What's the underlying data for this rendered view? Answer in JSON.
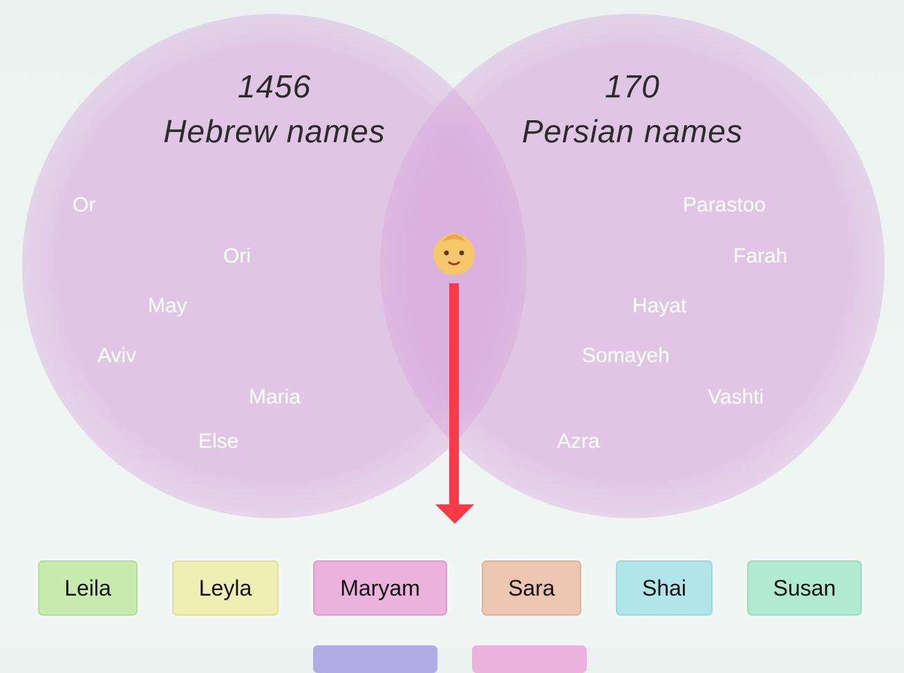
{
  "venn": {
    "left": {
      "count": 1456,
      "label": "Hebrew names",
      "names": [
        "Or",
        "Ori",
        "May",
        "Aviv",
        "Maria",
        "Else"
      ]
    },
    "right": {
      "count": 170,
      "label": "Persian names",
      "names": [
        "Parastoo",
        "Farah",
        "Hayat",
        "Somayeh",
        "Vashti",
        "Azra"
      ]
    }
  },
  "shared_names": [
    "Leila",
    "Leyla",
    "Maryam",
    "Sara",
    "Shai",
    "Susan"
  ]
}
